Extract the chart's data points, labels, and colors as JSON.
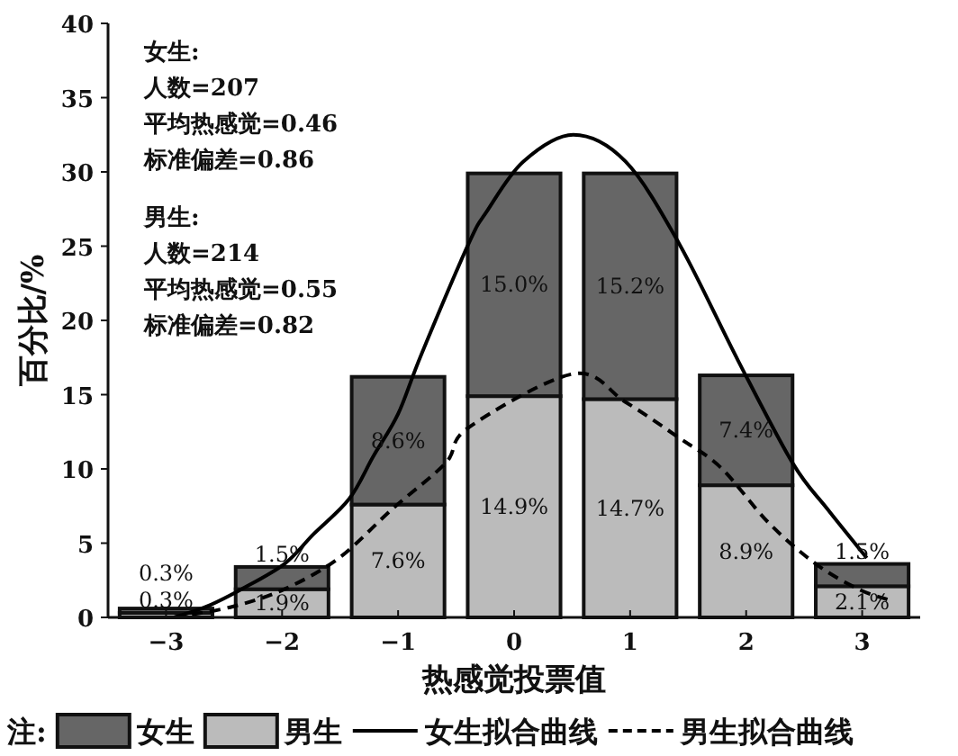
{
  "chart_data": {
    "type": "bar",
    "stacked": true,
    "xlabel": "热感觉投票值",
    "ylabel": "百分比/%",
    "legend_title": "注:",
    "legend": "bottom",
    "x": [
      -3,
      -2,
      -1,
      0,
      1,
      2,
      3
    ],
    "xlim": [
      -3.5,
      3.5
    ],
    "xticks": [
      {
        "value": -3,
        "label": "−3"
      },
      {
        "value": -2,
        "label": "−2"
      },
      {
        "value": -1,
        "label": "−1"
      },
      0,
      1,
      2,
      3
    ],
    "ylim": [
      0,
      40
    ],
    "yticks": [
      0,
      5,
      10,
      15,
      20,
      25,
      30,
      35,
      40
    ],
    "series": [
      {
        "name": "男生",
        "color": "#bbbbbb",
        "values": [
          0.3,
          1.9,
          7.6,
          14.9,
          14.7,
          8.9,
          2.1
        ],
        "value_labels": [
          "0.3%",
          "1.9%",
          "7.6%",
          "14.9%",
          "14.7%",
          "8.9%",
          "2.1%"
        ]
      },
      {
        "name": "女生",
        "color": "#666666",
        "values": [
          0.3,
          1.5,
          8.6,
          15.0,
          15.2,
          7.4,
          1.5
        ],
        "value_labels": [
          "0.3%",
          "1.5%",
          "8.6%",
          "15.0%",
          "15.2%",
          "7.4%",
          "1.5%"
        ]
      },
      {
        "name": "女生拟合曲线",
        "type": "line",
        "color": "#000000",
        "line_style": "solid",
        "x": [
          -2.93,
          -2.66,
          -2.35,
          -1.98,
          -1.73,
          -1.42,
          -1.21,
          -1.0,
          -0.8,
          -0.39,
          -0.23,
          0.08,
          0.51,
          0.96,
          1.42,
          1.93,
          2.4,
          2.7,
          3.04
        ],
        "values": [
          0,
          0.7,
          1.9,
          3.6,
          5.6,
          8.0,
          10.9,
          13.7,
          17.7,
          25.2,
          27.4,
          30.7,
          32.5,
          30.7,
          25.2,
          17.3,
          10.4,
          7.3,
          4.0
        ]
      },
      {
        "name": "男生拟合曲线",
        "type": "line",
        "color": "#000000",
        "line_style": "dashed",
        "x": [
          -2.93,
          -2.44,
          -1.98,
          -1.51,
          -1.05,
          -0.59,
          -0.39,
          0.51,
          0.96,
          1.42,
          1.78,
          2.19,
          2.6,
          2.97,
          3.22
        ],
        "values": [
          0,
          0.7,
          1.9,
          4.0,
          7.3,
          10.4,
          12.8,
          16.4,
          14.5,
          12.1,
          10.1,
          6.4,
          3.6,
          1.9,
          1.2
        ]
      }
    ],
    "annotations": [
      "女生:\n人数=207\n平均热感觉=0.46\n标准偏差=0.86",
      "男生:\n人数=214\n平均热感觉=0.55\n标准偏差=0.82"
    ]
  }
}
